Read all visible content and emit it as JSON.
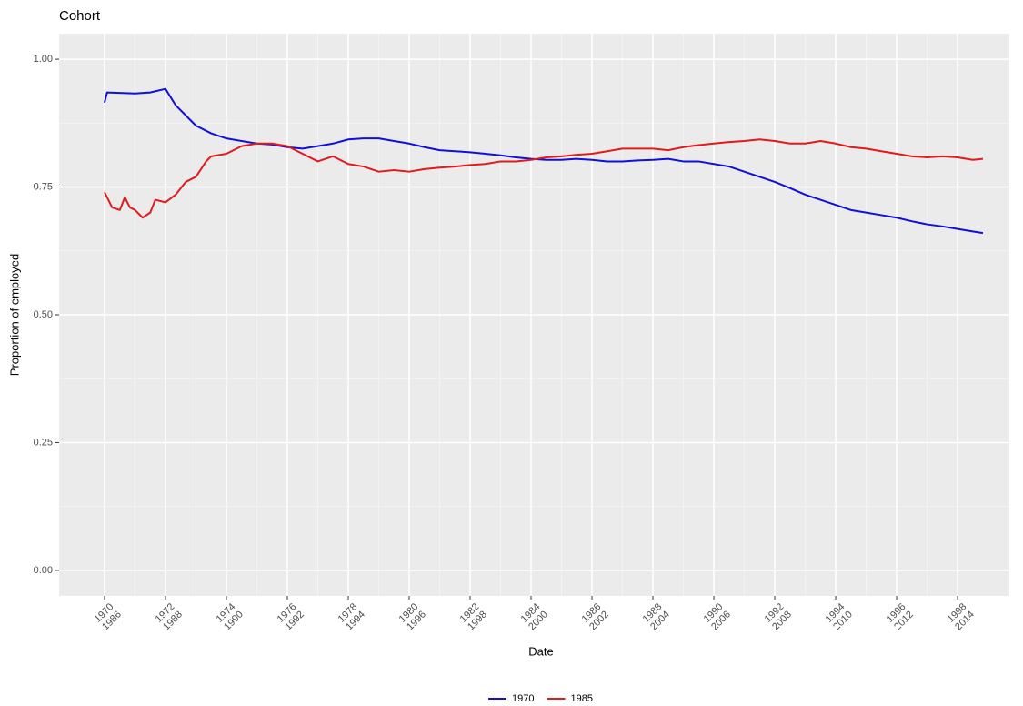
{
  "chart_data": {
    "type": "line",
    "title": "Cohort",
    "x_label": "Date",
    "y_label": "Proportion of employed",
    "xlim": [
      -17.9,
      356.4
    ],
    "ylim": [
      -0.05,
      1.05
    ],
    "xticks": [
      {
        "value": 0,
        "label": "1970\n1986"
      },
      {
        "value": 24,
        "label": "1972\n1988"
      },
      {
        "value": 48,
        "label": "1974\n1990"
      },
      {
        "value": 72,
        "label": "1976\n1992"
      },
      {
        "value": 96,
        "label": "1978\n1994"
      },
      {
        "value": 120,
        "label": "1980\n1996"
      },
      {
        "value": 144,
        "label": "1982\n1998"
      },
      {
        "value": 168,
        "label": "1984\n2000"
      },
      {
        "value": 192,
        "label": "1986\n2002"
      },
      {
        "value": 216,
        "label": "1988\n2004"
      },
      {
        "value": 240,
        "label": "1990\n2006"
      },
      {
        "value": 264,
        "label": "1992\n2008"
      },
      {
        "value": 288,
        "label": "1994\n2010"
      },
      {
        "value": 312,
        "label": "1996\n2012"
      },
      {
        "value": 336,
        "label": "1998\n2014"
      }
    ],
    "yticks": [
      {
        "value": 0,
        "label": "0.00"
      },
      {
        "value": 0.25,
        "label": "0.25"
      },
      {
        "value": 0.5,
        "label": "0.50"
      },
      {
        "value": 0.75,
        "label": "0.75"
      },
      {
        "value": 1,
        "label": "1.00"
      }
    ],
    "grid": true,
    "legend": "bottom",
    "series": [
      {
        "name": "1970",
        "color": "#1010d8",
        "x": [
          0,
          1,
          6,
          12,
          18,
          24,
          28,
          32,
          36,
          42,
          48,
          54,
          60,
          66,
          72,
          78,
          84,
          90,
          96,
          102,
          108,
          114,
          120,
          126,
          132,
          138,
          144,
          150,
          156,
          162,
          168,
          174,
          180,
          186,
          192,
          198,
          204,
          210,
          216,
          222,
          228,
          234,
          240,
          246,
          252,
          258,
          264,
          270,
          276,
          282,
          288,
          294,
          300,
          306,
          312,
          318,
          324,
          330,
          336,
          342,
          346
        ],
        "values": [
          0.915,
          0.935,
          0.934,
          0.933,
          0.935,
          0.942,
          0.91,
          0.89,
          0.87,
          0.855,
          0.845,
          0.84,
          0.835,
          0.833,
          0.828,
          0.825,
          0.83,
          0.835,
          0.843,
          0.845,
          0.845,
          0.84,
          0.835,
          0.828,
          0.822,
          0.82,
          0.818,
          0.815,
          0.812,
          0.808,
          0.805,
          0.803,
          0.803,
          0.805,
          0.803,
          0.8,
          0.8,
          0.802,
          0.803,
          0.805,
          0.8,
          0.8,
          0.795,
          0.79,
          0.78,
          0.77,
          0.76,
          0.748,
          0.735,
          0.725,
          0.715,
          0.705,
          0.7,
          0.695,
          0.69,
          0.683,
          0.677,
          0.673,
          0.668,
          0.663,
          0.66
        ]
      },
      {
        "name": "1985",
        "color": "#e31a1c",
        "x": [
          0,
          3,
          6,
          8,
          10,
          12,
          15,
          18,
          20,
          24,
          28,
          32,
          36,
          40,
          42,
          48,
          54,
          60,
          66,
          72,
          78,
          84,
          90,
          96,
          102,
          108,
          114,
          120,
          126,
          132,
          138,
          144,
          150,
          156,
          162,
          168,
          174,
          180,
          186,
          192,
          198,
          204,
          210,
          216,
          222,
          228,
          234,
          240,
          246,
          252,
          258,
          264,
          270,
          276,
          282,
          288,
          294,
          300,
          306,
          312,
          318,
          324,
          330,
          336,
          342,
          346
        ],
        "values": [
          0.74,
          0.71,
          0.705,
          0.73,
          0.71,
          0.705,
          0.69,
          0.7,
          0.725,
          0.72,
          0.735,
          0.76,
          0.77,
          0.8,
          0.81,
          0.815,
          0.83,
          0.835,
          0.835,
          0.83,
          0.815,
          0.8,
          0.81,
          0.795,
          0.79,
          0.78,
          0.783,
          0.78,
          0.785,
          0.788,
          0.79,
          0.793,
          0.795,
          0.8,
          0.8,
          0.803,
          0.808,
          0.81,
          0.813,
          0.815,
          0.82,
          0.825,
          0.825,
          0.825,
          0.822,
          0.828,
          0.832,
          0.835,
          0.838,
          0.84,
          0.843,
          0.84,
          0.835,
          0.835,
          0.84,
          0.835,
          0.828,
          0.825,
          0.82,
          0.815,
          0.81,
          0.808,
          0.81,
          0.808,
          0.803,
          0.805
        ]
      }
    ]
  }
}
